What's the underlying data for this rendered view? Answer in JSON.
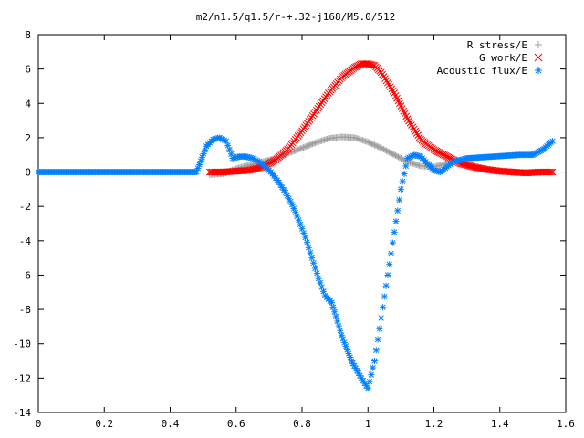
{
  "chart_data": {
    "type": "scatter",
    "title": "m2/n1.5/q1.5/r-+.32-j168/M5.0/512",
    "xlabel": "",
    "ylabel": "",
    "xlim": [
      0,
      1.6
    ],
    "ylim": [
      -14,
      8
    ],
    "xticks": [
      "0",
      "0.2",
      "0.4",
      "0.6",
      "0.8",
      "1",
      "1.2",
      "1.4",
      "1.6"
    ],
    "yticks": [
      "8",
      "6",
      "4",
      "2",
      "0",
      "-2",
      "-4",
      "-6",
      "-8",
      "-10",
      "-12",
      "-14"
    ],
    "xtick_values": [
      0,
      0.2,
      0.4,
      0.6,
      0.8,
      1.0,
      1.2,
      1.4,
      1.6
    ],
    "ytick_values": [
      8,
      6,
      4,
      2,
      0,
      -2,
      -4,
      -6,
      -8,
      -10,
      -12,
      -14
    ],
    "grid": false,
    "legend_position": "top-right",
    "series": [
      {
        "name": "R stress/E",
        "marker": "plus",
        "color": "#a0a0a0",
        "x": [
          0.52,
          0.56,
          0.6,
          0.64,
          0.68,
          0.72,
          0.76,
          0.8,
          0.84,
          0.88,
          0.92,
          0.96,
          1.0,
          1.04,
          1.08,
          1.12,
          1.16,
          1.2,
          1.24
        ],
        "y": [
          -0.15,
          -0.1,
          0.2,
          0.4,
          0.6,
          0.8,
          1.1,
          1.4,
          1.7,
          1.95,
          2.05,
          2.0,
          1.75,
          1.4,
          1.0,
          0.6,
          0.35,
          0.3,
          0.5
        ]
      },
      {
        "name": "G work/E",
        "marker": "cross",
        "color": "#ff0000",
        "x": [
          0.52,
          0.56,
          0.6,
          0.64,
          0.68,
          0.72,
          0.76,
          0.8,
          0.84,
          0.88,
          0.92,
          0.96,
          0.98,
          1.0,
          1.02,
          1.04,
          1.08,
          1.12,
          1.16,
          1.2,
          1.24,
          1.28,
          1.32,
          1.36,
          1.4,
          1.44,
          1.48,
          1.52,
          1.56
        ],
        "y": [
          0.0,
          0.0,
          0.05,
          0.1,
          0.3,
          0.7,
          1.4,
          2.4,
          3.5,
          4.6,
          5.5,
          6.1,
          6.3,
          6.3,
          6.2,
          5.8,
          4.6,
          3.1,
          1.9,
          1.3,
          0.9,
          0.5,
          0.3,
          0.15,
          0.05,
          0.0,
          -0.05,
          0.0,
          0.0
        ]
      },
      {
        "name": "Acoustic flux/E",
        "marker": "star",
        "color": "#0080ff",
        "x": [
          0.0,
          0.04,
          0.08,
          0.12,
          0.16,
          0.2,
          0.24,
          0.28,
          0.32,
          0.36,
          0.4,
          0.44,
          0.48,
          0.51,
          0.53,
          0.55,
          0.57,
          0.59,
          0.61,
          0.63,
          0.65,
          0.67,
          0.69,
          0.71,
          0.73,
          0.75,
          0.77,
          0.79,
          0.81,
          0.83,
          0.85,
          0.87,
          0.89,
          0.92,
          0.95,
          0.98,
          1.0,
          1.02,
          1.04,
          1.06,
          1.08,
          1.1,
          1.12,
          1.14,
          1.16,
          1.18,
          1.2,
          1.22,
          1.24,
          1.26,
          1.28,
          1.3,
          1.34,
          1.38,
          1.42,
          1.46,
          1.5,
          1.53,
          1.56
        ],
        "y": [
          0.0,
          0.0,
          0.0,
          0.0,
          0.0,
          0.0,
          0.0,
          0.0,
          0.0,
          0.0,
          0.0,
          0.0,
          0.0,
          1.5,
          1.9,
          2.0,
          1.8,
          0.8,
          0.9,
          0.9,
          0.8,
          0.6,
          0.3,
          -0.1,
          -0.6,
          -1.2,
          -1.9,
          -2.8,
          -3.8,
          -5.0,
          -6.2,
          -7.2,
          -7.6,
          -9.5,
          -11.0,
          -12.0,
          -12.6,
          -11.0,
          -8.5,
          -6.0,
          -3.5,
          -1.0,
          0.8,
          1.0,
          0.9,
          0.5,
          0.1,
          0.0,
          0.3,
          0.6,
          0.7,
          0.8,
          0.85,
          0.9,
          0.95,
          1.0,
          1.0,
          1.3,
          1.8
        ]
      }
    ]
  }
}
